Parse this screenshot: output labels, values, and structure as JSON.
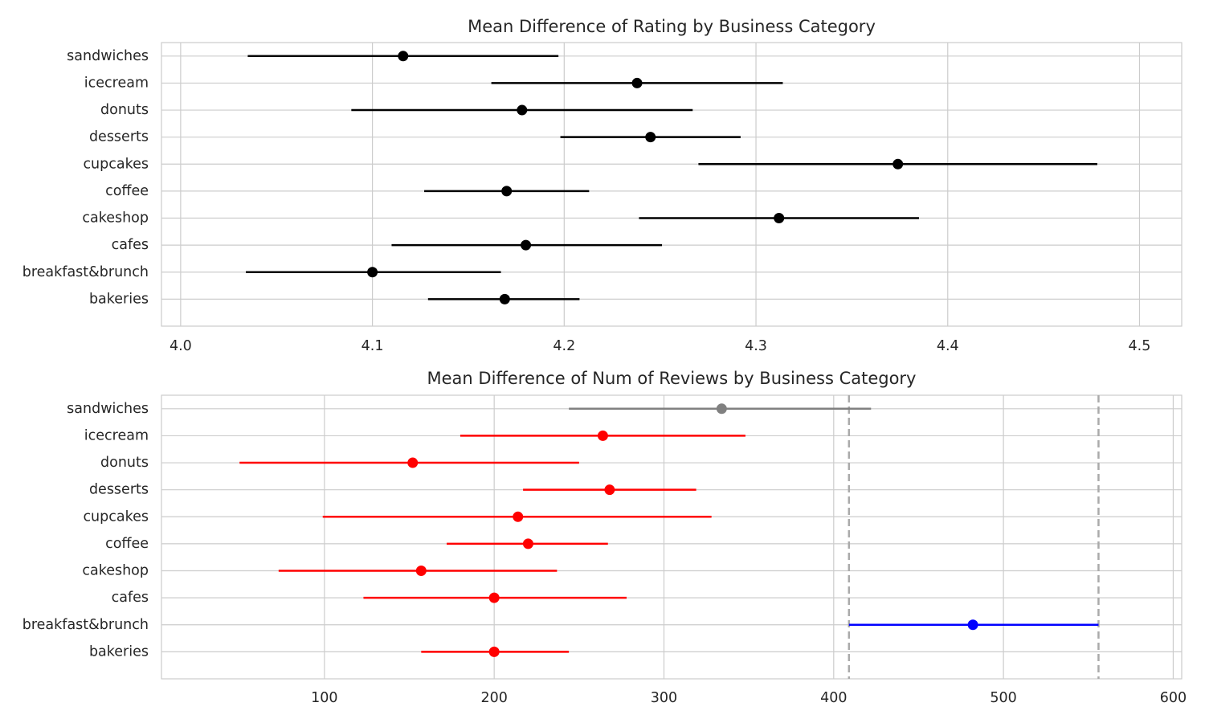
{
  "chart_data": [
    {
      "type": "errorbar",
      "title": "Mean Difference of Rating by Business Category",
      "xlabel": "",
      "ylabel": "",
      "xlim": [
        3.99,
        4.522
      ],
      "xticks": [
        "4.0",
        "4.1",
        "4.2",
        "4.3",
        "4.4",
        "4.5"
      ],
      "grid": true,
      "categories": [
        "sandwiches",
        "icecream",
        "donuts",
        "desserts",
        "cupcakes",
        "coffee",
        "cakeshop",
        "cafes",
        "breakfast&brunch",
        "bakeries"
      ],
      "means": [
        4.116,
        4.238,
        4.178,
        4.245,
        4.374,
        4.17,
        4.312,
        4.18,
        4.1,
        4.169
      ],
      "lower": [
        4.035,
        4.162,
        4.089,
        4.198,
        4.27,
        4.127,
        4.239,
        4.11,
        4.034,
        4.129
      ],
      "upper": [
        4.197,
        4.314,
        4.267,
        4.292,
        4.478,
        4.213,
        4.385,
        4.251,
        4.167,
        4.208
      ],
      "colors": [
        "#000000",
        "#000000",
        "#000000",
        "#000000",
        "#000000",
        "#000000",
        "#000000",
        "#000000",
        "#000000",
        "#000000"
      ]
    },
    {
      "type": "errorbar",
      "title": "Mean Difference of Num of Reviews by Business Category",
      "xlabel": "",
      "ylabel": "",
      "xlim": [
        4,
        605
      ],
      "xticks": [
        "100",
        "200",
        "300",
        "400",
        "500",
        "600"
      ],
      "grid": true,
      "categories": [
        "sandwiches",
        "icecream",
        "donuts",
        "desserts",
        "cupcakes",
        "coffee",
        "cakeshop",
        "cafes",
        "breakfast&brunch",
        "bakeries"
      ],
      "means": [
        334,
        264,
        152,
        268,
        214,
        220,
        157,
        200,
        482,
        200
      ],
      "lower": [
        244,
        180,
        50,
        217,
        99,
        172,
        73,
        123,
        409,
        157
      ],
      "upper": [
        422,
        348,
        250,
        319,
        328,
        267,
        237,
        278,
        556,
        244
      ],
      "colors": [
        "#808080",
        "#ff0000",
        "#ff0000",
        "#ff0000",
        "#ff0000",
        "#ff0000",
        "#ff0000",
        "#ff0000",
        "#0000ff",
        "#ff0000"
      ],
      "reference_lines": [
        409,
        556
      ],
      "reference_color": "#aaaaaa"
    }
  ]
}
